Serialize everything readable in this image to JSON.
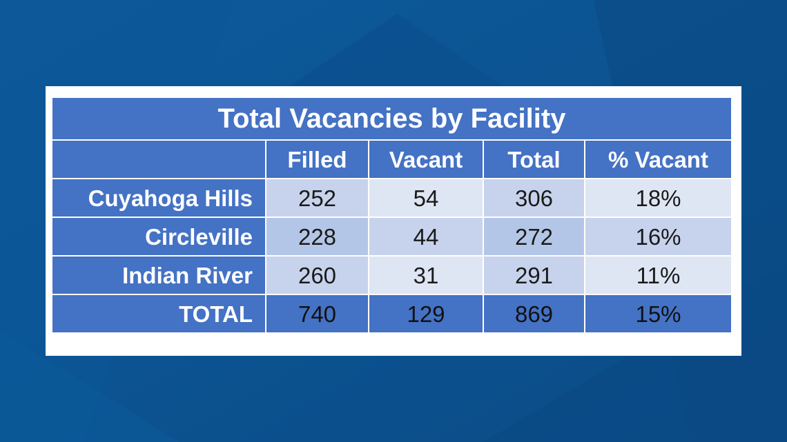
{
  "chart_data": {
    "type": "table",
    "title": "Total Vacancies by Facility",
    "columns": [
      "Filled",
      "Vacant",
      "Total",
      "% Vacant"
    ],
    "rows": [
      {
        "label": "Cuyahoga Hills",
        "values": [
          "252",
          "54",
          "306",
          "18%"
        ]
      },
      {
        "label": "Circleville",
        "values": [
          "228",
          "44",
          "272",
          "16%"
        ]
      },
      {
        "label": "Indian River",
        "values": [
          "260",
          "31",
          "291",
          "11%"
        ]
      },
      {
        "label": "TOTAL",
        "values": [
          "740",
          "129",
          "869",
          "15%"
        ]
      }
    ]
  },
  "colors": {
    "header_blue": "#4472c4",
    "cell_light": "#dfe6f3",
    "cell_mid": "#c7d3ec",
    "background": "#0a5390"
  }
}
